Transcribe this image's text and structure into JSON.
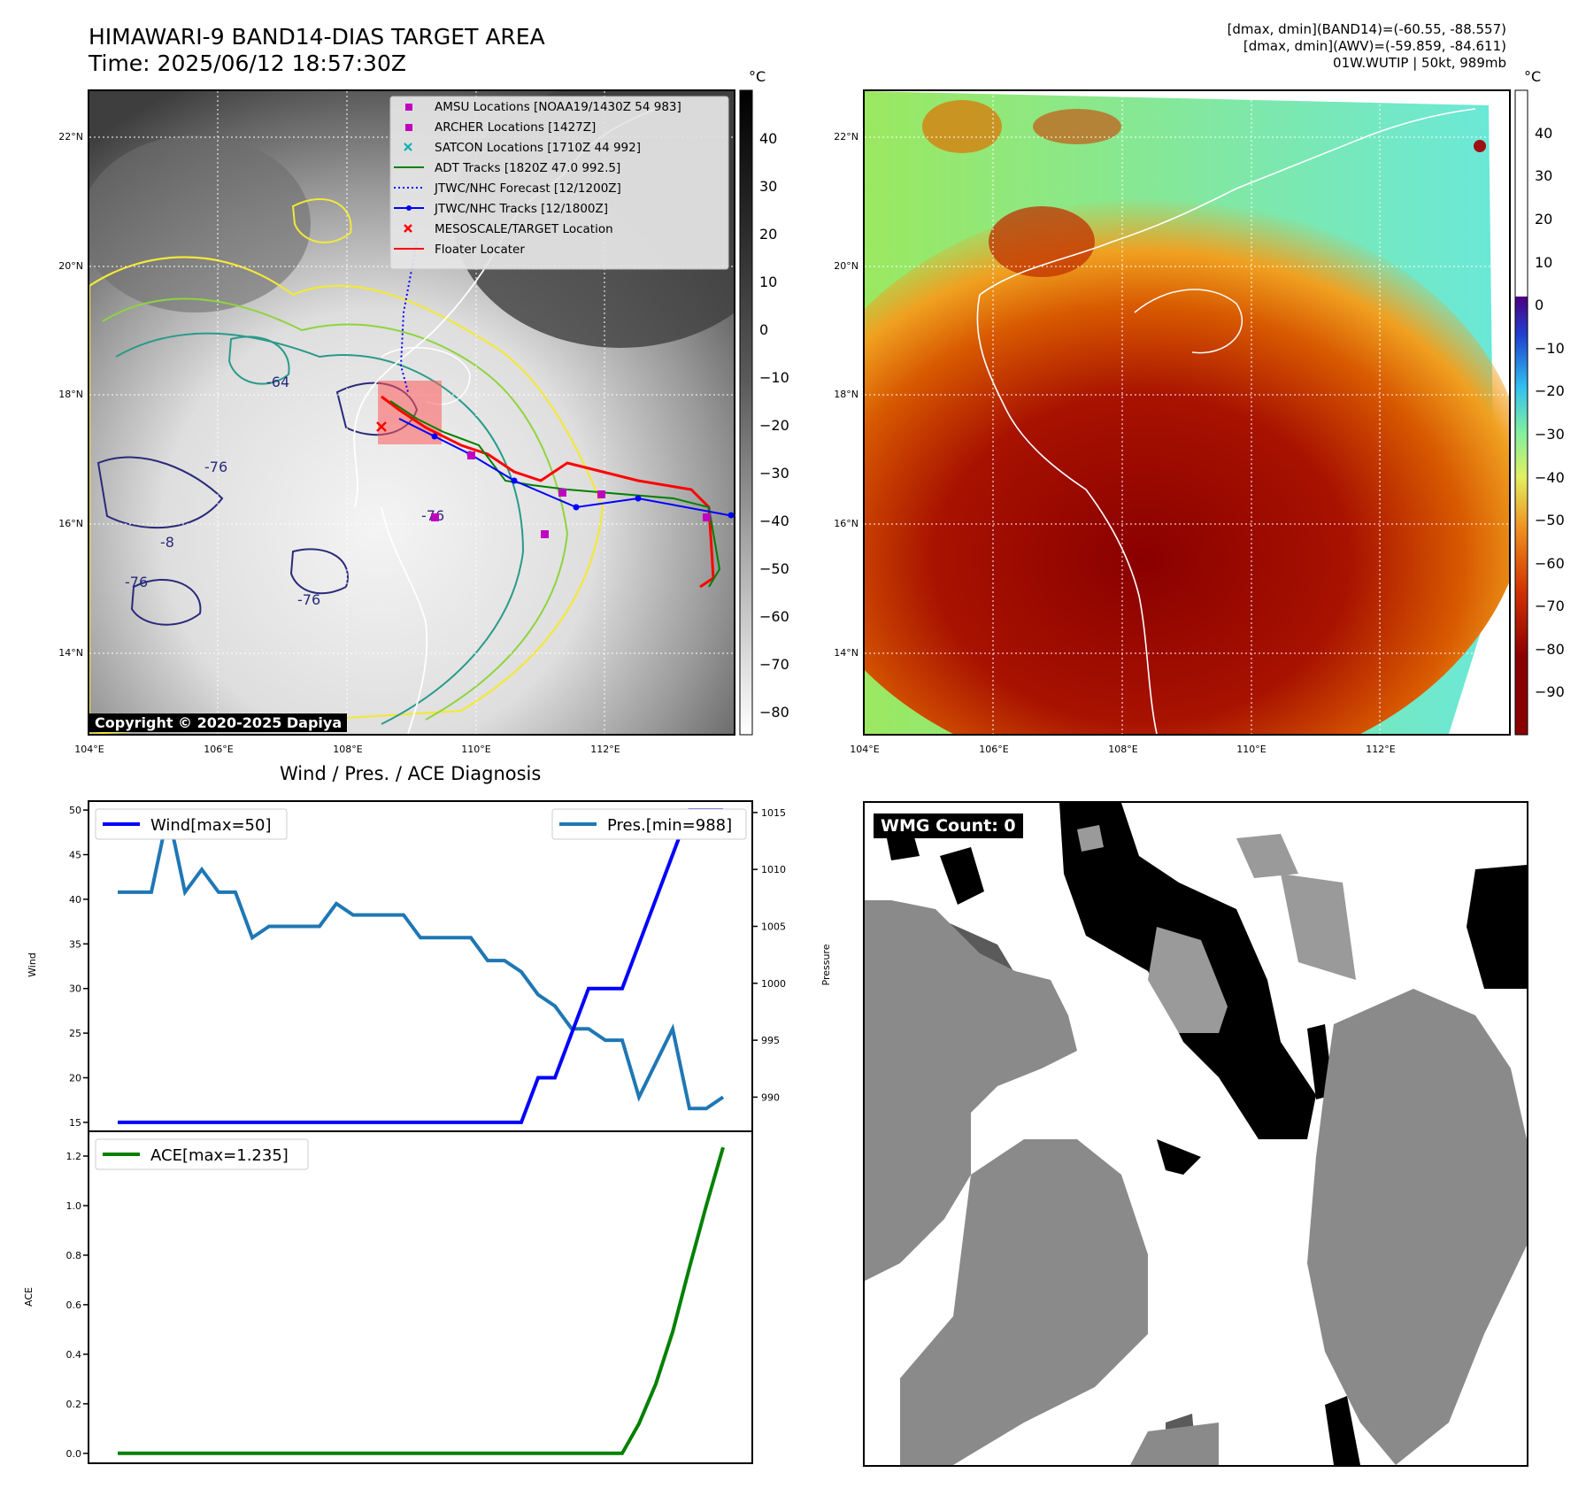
{
  "header": {
    "title_line1": "HIMAWARI-9 BAND14-DIAS TARGET AREA",
    "title_line2": "Time: 2025/06/12 18:57:30Z",
    "info_line1": "[dmax, dmin](BAND14)=(-60.55, -88.557)",
    "info_line2": "[dmax, dmin](AWV)=(-59.859, -84.611)",
    "info_line3": "01W.WUTIP | 50kt, 989mb"
  },
  "maps": {
    "lat_labels": [
      "22°N",
      "20°N",
      "18°N",
      "16°N",
      "14°N"
    ],
    "lon_labels": [
      "104°E",
      "106°E",
      "108°E",
      "110°E",
      "112°E"
    ],
    "contour_labels": [
      "-64",
      "-76",
      "-76",
      "-76",
      "-76",
      "-8"
    ],
    "copyright": "Copyright © 2020-2025 Dapiya"
  },
  "legend": {
    "items": [
      {
        "label": "AMSU Locations [NOAA19/1430Z 54 983]",
        "marker": "square",
        "color": "#c000c0"
      },
      {
        "label": "ARCHER Locations [1427Z]",
        "marker": "square",
        "color": "#c000c0"
      },
      {
        "label": "SATCON Locations [1710Z 44 992]",
        "marker": "x",
        "color": "#00b0b0"
      },
      {
        "label": "ADT Tracks [1820Z 47.0 992.5]",
        "marker": "line",
        "color": "#008000"
      },
      {
        "label": "JTWC/NHC Forecast [12/1200Z]",
        "marker": "dotted",
        "color": "#0000ff"
      },
      {
        "label": "JTWC/NHC Tracks [12/1800Z]",
        "marker": "line-dot",
        "color": "#0000ff"
      },
      {
        "label": "MESOSCALE/TARGET Location",
        "marker": "x",
        "color": "#ff0000"
      },
      {
        "label": "Floater Locater",
        "marker": "line",
        "color": "#ff0000"
      }
    ]
  },
  "colorbars": {
    "unit": "°C",
    "left_ticks": [
      "40",
      "30",
      "20",
      "10",
      "0",
      "−10",
      "−20",
      "−30",
      "−40",
      "−50",
      "−60",
      "−70",
      "−80"
    ],
    "right_ticks": [
      "40",
      "30",
      "20",
      "10",
      "0",
      "−10",
      "−20",
      "−30",
      "−40",
      "−50",
      "−60",
      "−70",
      "−80",
      "−90"
    ]
  },
  "diagnosis": {
    "title": "Wind / Pres. / ACE Diagnosis",
    "wind_ylabel": "Wind",
    "pres_ylabel": "Pressure",
    "ace_ylabel": "ACE",
    "wind_legend": "Wind[max=50]",
    "pres_legend": "Pres.[min=988]",
    "ace_legend": "ACE[max=1.235]",
    "wind_ticks": [
      "50",
      "45",
      "40",
      "35",
      "30",
      "25",
      "20",
      "15"
    ],
    "pres_ticks": [
      "1015",
      "1010",
      "1005",
      "1000",
      "995",
      "990"
    ],
    "ace_ticks": [
      "1.2",
      "1.0",
      "0.8",
      "0.6",
      "0.4",
      "0.2",
      "0.0"
    ]
  },
  "wmg": {
    "label": "WMG Count: 0"
  },
  "colors": {
    "wind": "#0000ff",
    "pressure": "#1f77b4",
    "ace": "#008000"
  },
  "chart_data": [
    {
      "type": "line",
      "title": "Wind / Pres. / ACE Diagnosis",
      "ylabel": "Wind",
      "ylim": [
        14,
        51
      ],
      "series": [
        {
          "name": "Wind[max=50]",
          "values": [
            15,
            15,
            15,
            15,
            15,
            15,
            15,
            15,
            15,
            15,
            15,
            15,
            15,
            15,
            15,
            15,
            15,
            15,
            15,
            15,
            15,
            15,
            15,
            15,
            15,
            20,
            20,
            25,
            30,
            30,
            30,
            35,
            40,
            45,
            50,
            50,
            50
          ]
        }
      ]
    },
    {
      "type": "line",
      "ylabel": "Pressure",
      "ylim": [
        987,
        1016
      ],
      "series": [
        {
          "name": "Pres.[min=988]",
          "values": [
            1008,
            1008,
            1008,
            1015,
            1008,
            1010,
            1008,
            1008,
            1004,
            1005,
            1005,
            1005,
            1005,
            1007,
            1006,
            1006,
            1006,
            1006,
            1004,
            1004,
            1004,
            1004,
            1002,
            1002,
            1001,
            999,
            998,
            996,
            996,
            995,
            995,
            990,
            993,
            996,
            989,
            989,
            990
          ]
        }
      ]
    },
    {
      "type": "line",
      "ylabel": "ACE",
      "ylim": [
        -0.04,
        1.3
      ],
      "series": [
        {
          "name": "ACE[max=1.235]",
          "values": [
            0,
            0,
            0,
            0,
            0,
            0,
            0,
            0,
            0,
            0,
            0,
            0,
            0,
            0,
            0,
            0,
            0,
            0,
            0,
            0,
            0,
            0,
            0,
            0,
            0,
            0,
            0,
            0,
            0,
            0,
            0,
            0.12,
            0.28,
            0.49,
            0.75,
            1.0,
            1.235
          ]
        }
      ]
    }
  ]
}
